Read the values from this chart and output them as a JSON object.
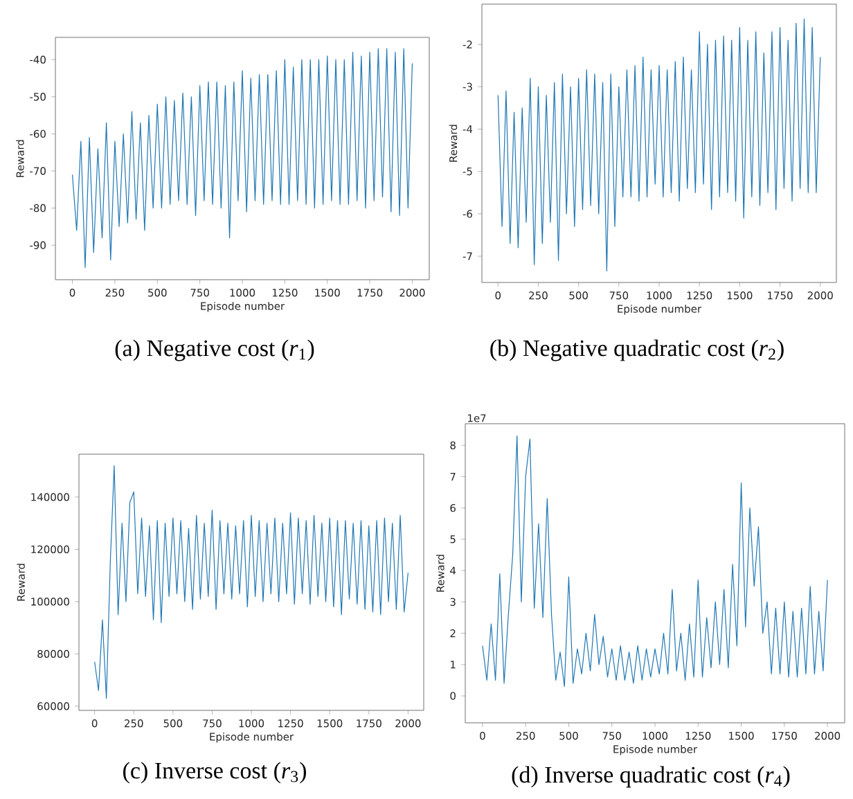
{
  "chart_data": [
    {
      "type": "line",
      "title": "(a) Negative cost (*r*$_{1}$)",
      "xlabel": "Episode number",
      "ylabel": "Reward",
      "color": "#1f77b4",
      "xlim": [
        -100,
        2100
      ],
      "ylim": [
        -99.3,
        -34
      ],
      "xticks": [
        0,
        250,
        500,
        750,
        1000,
        1250,
        1500,
        1750,
        2000
      ],
      "yticks": [
        -90,
        -80,
        -70,
        -60,
        -50,
        -40
      ],
      "x": [
        0,
        25,
        50,
        75,
        100,
        125,
        150,
        175,
        200,
        225,
        250,
        275,
        300,
        325,
        350,
        375,
        400,
        425,
        450,
        475,
        500,
        525,
        550,
        575,
        600,
        625,
        650,
        675,
        700,
        725,
        750,
        775,
        800,
        825,
        850,
        875,
        900,
        925,
        950,
        975,
        1000,
        1025,
        1050,
        1075,
        1100,
        1125,
        1150,
        1175,
        1200,
        1225,
        1250,
        1275,
        1300,
        1325,
        1350,
        1375,
        1400,
        1425,
        1450,
        1475,
        1500,
        1525,
        1550,
        1575,
        1600,
        1625,
        1650,
        1675,
        1700,
        1725,
        1750,
        1775,
        1800,
        1825,
        1850,
        1875,
        1900,
        1925,
        1950,
        1975,
        2000
      ],
      "values": [
        -71,
        -86,
        -62,
        -96,
        -61,
        -92,
        -64,
        -88,
        -57,
        -94,
        -62,
        -85,
        -60,
        -84,
        -54,
        -83,
        -57,
        -86,
        -55,
        -80,
        -52,
        -80,
        -50,
        -79,
        -51,
        -78,
        -49,
        -79,
        -50,
        -82,
        -47,
        -78,
        -46,
        -79,
        -46,
        -80,
        -47,
        -88,
        -46,
        -78,
        -43,
        -81,
        -45,
        -78,
        -44,
        -79,
        -44,
        -78,
        -43,
        -79,
        -40,
        -79,
        -42,
        -78,
        -40,
        -79,
        -40,
        -80,
        -40,
        -79,
        -39,
        -78,
        -40,
        -79,
        -40,
        -79,
        -38,
        -78,
        -39,
        -80,
        -38,
        -78,
        -37,
        -77,
        -37,
        -81,
        -38,
        -82,
        -37,
        -80,
        -41
      ]
    },
    {
      "type": "line",
      "title": "(b) Negative quadratic cost (*r*$_{2}$)",
      "xlabel": "Episode number",
      "ylabel": "Reward",
      "color": "#1f77b4",
      "xlim": [
        -100,
        2100
      ],
      "ylim": [
        -7.62,
        -1.05
      ],
      "xticks": [
        0,
        250,
        500,
        750,
        1000,
        1250,
        1500,
        1750,
        2000
      ],
      "yticks": [
        -7,
        -6,
        -5,
        -4,
        -3,
        -2
      ],
      "x": [
        0,
        25,
        50,
        75,
        100,
        125,
        150,
        175,
        200,
        225,
        250,
        275,
        300,
        325,
        350,
        375,
        400,
        425,
        450,
        475,
        500,
        525,
        550,
        575,
        600,
        625,
        650,
        675,
        700,
        725,
        750,
        775,
        800,
        825,
        850,
        875,
        900,
        925,
        950,
        975,
        1000,
        1025,
        1050,
        1075,
        1100,
        1125,
        1150,
        1175,
        1200,
        1225,
        1250,
        1275,
        1300,
        1325,
        1350,
        1375,
        1400,
        1425,
        1450,
        1475,
        1500,
        1525,
        1550,
        1575,
        1600,
        1625,
        1650,
        1675,
        1700,
        1725,
        1750,
        1775,
        1800,
        1825,
        1850,
        1875,
        1900,
        1925,
        1950,
        1975,
        2000
      ],
      "values": [
        -3.2,
        -6.3,
        -3.1,
        -6.7,
        -3.6,
        -6.8,
        -3.5,
        -6.2,
        -2.8,
        -7.2,
        -3.0,
        -6.7,
        -3.2,
        -6.2,
        -2.9,
        -7.1,
        -2.7,
        -6.0,
        -3.0,
        -6.3,
        -2.8,
        -5.9,
        -2.6,
        -5.8,
        -2.7,
        -6.0,
        -2.9,
        -7.35,
        -2.7,
        -6.3,
        -3.0,
        -5.6,
        -2.6,
        -5.6,
        -2.5,
        -5.7,
        -2.3,
        -5.6,
        -2.6,
        -5.3,
        -2.5,
        -5.6,
        -2.6,
        -5.5,
        -2.4,
        -5.7,
        -2.3,
        -5.4,
        -2.6,
        -5.5,
        -1.7,
        -5.3,
        -2.0,
        -5.9,
        -1.9,
        -5.6,
        -1.8,
        -5.5,
        -1.9,
        -5.7,
        -1.6,
        -6.1,
        -1.9,
        -5.6,
        -1.7,
        -5.8,
        -2.2,
        -5.5,
        -1.7,
        -5.9,
        -1.6,
        -5.4,
        -1.9,
        -5.7,
        -1.5,
        -5.4,
        -1.4,
        -5.5,
        -1.6,
        -5.5,
        -2.3
      ]
    },
    {
      "type": "line",
      "title": "(c) Inverse cost (*r*$_{3}$)",
      "xlabel": "Episode number",
      "ylabel": "Reward",
      "color": "#1f77b4",
      "xlim": [
        -100,
        2100
      ],
      "ylim": [
        58400,
        156400
      ],
      "xticks": [
        0,
        250,
        500,
        750,
        1000,
        1250,
        1500,
        1750,
        2000
      ],
      "yticks": [
        60000,
        80000,
        100000,
        120000,
        140000
      ],
      "x": [
        0,
        25,
        50,
        75,
        100,
        125,
        150,
        175,
        200,
        225,
        250,
        275,
        300,
        325,
        350,
        375,
        400,
        425,
        450,
        475,
        500,
        525,
        550,
        575,
        600,
        625,
        650,
        675,
        700,
        725,
        750,
        775,
        800,
        825,
        850,
        875,
        900,
        925,
        950,
        975,
        1000,
        1025,
        1050,
        1075,
        1100,
        1125,
        1150,
        1175,
        1200,
        1225,
        1250,
        1275,
        1300,
        1325,
        1350,
        1375,
        1400,
        1425,
        1450,
        1475,
        1500,
        1525,
        1550,
        1575,
        1600,
        1625,
        1650,
        1675,
        1700,
        1725,
        1750,
        1775,
        1800,
        1825,
        1850,
        1875,
        1900,
        1925,
        1950,
        1975,
        2000
      ],
      "values": [
        77000,
        66000,
        93000,
        63000,
        115000,
        152000,
        95000,
        130000,
        100000,
        138000,
        142000,
        103000,
        132000,
        102000,
        129000,
        93000,
        131000,
        92000,
        130000,
        102000,
        132000,
        103000,
        131000,
        100000,
        128000,
        97000,
        133000,
        101000,
        130000,
        102000,
        135000,
        97000,
        131000,
        103000,
        130000,
        101000,
        129000,
        103000,
        131000,
        98000,
        133000,
        102000,
        131000,
        100000,
        130000,
        103000,
        132000,
        100000,
        130000,
        103000,
        134000,
        99000,
        132000,
        103000,
        131000,
        99000,
        133000,
        102000,
        130000,
        100000,
        132000,
        98000,
        131000,
        95000,
        131000,
        101000,
        130000,
        99000,
        131000,
        97000,
        129000,
        96000,
        131000,
        95000,
        132000,
        100000,
        130000,
        97000,
        133000,
        96000,
        111000
      ]
    },
    {
      "type": "line",
      "title": "(d) Inverse quadratic cost (*r*$_{4}$)",
      "xlabel": "Episode number",
      "ylabel": "Reward",
      "annotations": [
        "1e7"
      ],
      "color": "#1f77b4",
      "xlim": [
        -100,
        2100
      ],
      "ylim": [
        -0.86,
        8.69
      ],
      "xticks": [
        0,
        250,
        500,
        750,
        1000,
        1250,
        1500,
        1750,
        2000
      ],
      "yticks": [
        0,
        1,
        2,
        3,
        4,
        5,
        6,
        7,
        8
      ],
      "x": [
        0,
        25,
        50,
        75,
        100,
        125,
        150,
        175,
        200,
        225,
        250,
        275,
        300,
        325,
        350,
        375,
        400,
        425,
        450,
        475,
        500,
        525,
        550,
        575,
        600,
        625,
        650,
        675,
        700,
        725,
        750,
        775,
        800,
        825,
        850,
        875,
        900,
        925,
        950,
        975,
        1000,
        1025,
        1050,
        1075,
        1100,
        1125,
        1150,
        1175,
        1200,
        1225,
        1250,
        1275,
        1300,
        1325,
        1350,
        1375,
        1400,
        1425,
        1450,
        1475,
        1500,
        1525,
        1550,
        1575,
        1600,
        1625,
        1650,
        1675,
        1700,
        1725,
        1750,
        1775,
        1800,
        1825,
        1850,
        1875,
        1900,
        1925,
        1950,
        1975,
        2000
      ],
      "values": [
        1.6,
        0.5,
        2.3,
        0.5,
        3.9,
        0.4,
        2.6,
        4.5,
        8.3,
        3.0,
        7.0,
        8.2,
        2.8,
        5.5,
        2.5,
        6.3,
        2.6,
        0.5,
        1.4,
        0.3,
        3.8,
        0.4,
        1.5,
        0.7,
        2.0,
        0.8,
        2.6,
        1.0,
        1.9,
        0.6,
        1.5,
        0.5,
        1.6,
        0.5,
        1.4,
        0.4,
        1.6,
        0.5,
        1.5,
        0.6,
        1.5,
        0.7,
        2.0,
        0.7,
        3.4,
        0.8,
        2.0,
        0.5,
        2.3,
        0.6,
        3.7,
        0.6,
        2.5,
        0.9,
        3.0,
        1.0,
        3.4,
        0.9,
        4.2,
        1.6,
        6.8,
        2.2,
        6.0,
        3.5,
        5.4,
        2.0,
        3.0,
        0.7,
        2.8,
        0.7,
        3.0,
        0.6,
        2.7,
        0.6,
        2.8,
        0.7,
        3.5,
        0.7,
        2.7,
        0.8,
        3.7
      ]
    }
  ]
}
